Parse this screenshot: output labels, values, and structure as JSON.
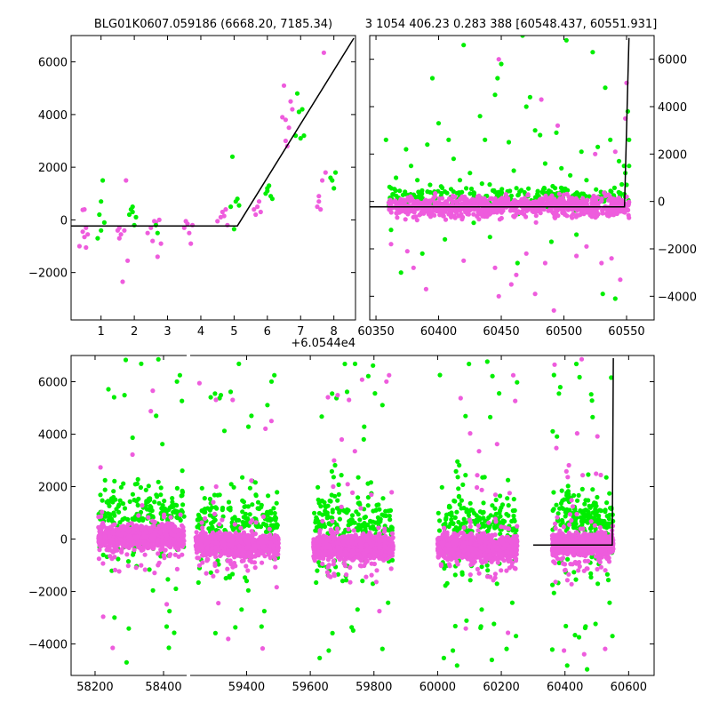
{
  "titles": {
    "left": "BLG01K0607.059186 (6668.20, 7185.34)",
    "right": "3 1054 406.23 0.283 388 [60548.437, 60551.931]"
  },
  "colors": {
    "green": "#00ee00",
    "magenta": "#ee5cdd",
    "model": "#000000"
  },
  "chart_data": [
    {
      "type": "scatter",
      "panel": "zoom",
      "x_offset_label": "+6.0544e4",
      "xlim": [
        0.1,
        8.65
      ],
      "ylim": [
        -3800,
        7000
      ],
      "xticks": [
        1,
        2,
        3,
        4,
        5,
        6,
        7,
        8
      ],
      "xtick_labels": [
        "1",
        "2",
        "3",
        "4",
        "5",
        "6",
        "7",
        "8"
      ],
      "yticks": [
        -2000,
        0,
        2000,
        4000,
        6000
      ],
      "ytick_labels": [
        "−2000",
        "0",
        "2000",
        "4000",
        "6000"
      ],
      "model_line": [
        [
          0.1,
          -230
        ],
        [
          5.1,
          -230
        ],
        [
          8.6,
          6900
        ]
      ],
      "series": [
        {
          "color_key": "magenta",
          "points": [
            [
              0.35,
              -1000
            ],
            [
              0.45,
              -450
            ],
            [
              0.5,
              -650
            ],
            [
              0.55,
              -300
            ],
            [
              0.6,
              -550
            ],
            [
              0.5,
              400
            ],
            [
              0.45,
              380
            ],
            [
              0.55,
              -1050
            ],
            [
              1.5,
              -400
            ],
            [
              1.55,
              -700
            ],
            [
              1.6,
              -550
            ],
            [
              1.65,
              -2350
            ],
            [
              1.7,
              -400
            ],
            [
              1.75,
              1500
            ],
            [
              1.8,
              -1550
            ],
            [
              1.55,
              -300
            ],
            [
              2.4,
              -500
            ],
            [
              2.5,
              -300
            ],
            [
              2.55,
              -800
            ],
            [
              2.6,
              -50
            ],
            [
              2.65,
              -100
            ],
            [
              2.7,
              -1400
            ],
            [
              2.75,
              0
            ],
            [
              2.8,
              -900
            ],
            [
              3.5,
              -300
            ],
            [
              3.6,
              -150
            ],
            [
              3.65,
              -500
            ],
            [
              3.7,
              -900
            ],
            [
              3.55,
              -50
            ],
            [
              3.75,
              -200
            ],
            [
              4.5,
              -50
            ],
            [
              4.6,
              100
            ],
            [
              4.65,
              300
            ],
            [
              4.7,
              150
            ],
            [
              4.75,
              400
            ],
            [
              4.8,
              -200
            ],
            [
              5.6,
              400
            ],
            [
              5.7,
              500
            ],
            [
              5.75,
              700
            ],
            [
              5.8,
              300
            ],
            [
              5.65,
              200
            ],
            [
              6.45,
              3900
            ],
            [
              6.5,
              5100
            ],
            [
              6.55,
              3000
            ],
            [
              6.6,
              2800
            ],
            [
              6.65,
              3500
            ],
            [
              6.7,
              4500
            ],
            [
              6.75,
              4200
            ],
            [
              6.55,
              3800
            ],
            [
              7.5,
              500
            ],
            [
              7.55,
              700
            ],
            [
              7.6,
              400
            ],
            [
              7.65,
              1500
            ],
            [
              7.7,
              6350
            ],
            [
              7.75,
              1800
            ],
            [
              7.55,
              900
            ]
          ]
        },
        {
          "color_key": "green",
          "points": [
            [
              0.9,
              -700
            ],
            [
              0.95,
              200
            ],
            [
              1.0,
              700
            ],
            [
              1.05,
              1500
            ],
            [
              1.1,
              -100
            ],
            [
              1.0,
              -400
            ],
            [
              1.85,
              200
            ],
            [
              1.9,
              400
            ],
            [
              1.95,
              500
            ],
            [
              2.0,
              -200
            ],
            [
              2.05,
              100
            ],
            [
              1.95,
              300
            ],
            [
              2.65,
              -200
            ],
            [
              2.7,
              -500
            ],
            [
              4.9,
              500
            ],
            [
              4.95,
              2400
            ],
            [
              5.0,
              -350
            ],
            [
              5.05,
              700
            ],
            [
              5.1,
              800
            ],
            [
              5.15,
              550
            ],
            [
              5.95,
              1000
            ],
            [
              6.0,
              1200
            ],
            [
              6.05,
              1300
            ],
            [
              6.1,
              900
            ],
            [
              6.15,
              800
            ],
            [
              6.0,
              1100
            ],
            [
              6.85,
              3200
            ],
            [
              6.9,
              4800
            ],
            [
              6.95,
              4100
            ],
            [
              7.0,
              3100
            ],
            [
              7.05,
              4200
            ],
            [
              7.1,
              3200
            ],
            [
              7.95,
              1500
            ],
            [
              8.0,
              1200
            ],
            [
              8.05,
              1800
            ],
            [
              7.9,
              1600
            ]
          ]
        }
      ]
    },
    {
      "type": "scatter",
      "panel": "season",
      "xlim": [
        60345,
        60572
      ],
      "ylim": [
        -5000,
        7000
      ],
      "xticks": [
        60350,
        60400,
        60450,
        60500,
        60550
      ],
      "xtick_labels": [
        "60350",
        "60400",
        "60450",
        "60500",
        "60550"
      ],
      "yticks": [
        -4000,
        -2000,
        0,
        2000,
        4000,
        6000
      ],
      "ytick_labels": [
        "−4000",
        "−2000",
        "0",
        "2000",
        "4000",
        "6000"
      ],
      "model_line": [
        [
          60345,
          -230
        ],
        [
          60548.4,
          -230
        ],
        [
          60551.9,
          6900
        ]
      ],
      "series": [
        {
          "color_key": "magenta",
          "dense_band": {
            "x_range": [
              60360,
              60552
            ],
            "y_center": -200,
            "spread": 650
          },
          "points": [
            [
              60362,
              -1800
            ],
            [
              60375,
              -2100
            ],
            [
              60390,
              -3700
            ],
            [
              60420,
              -2500
            ],
            [
              60445,
              -2800
            ],
            [
              60448,
              -4000
            ],
            [
              60458,
              -3500
            ],
            [
              60462,
              -3100
            ],
            [
              60470,
              -2200
            ],
            [
              60477,
              -3900
            ],
            [
              60485,
              -2600
            ],
            [
              60492,
              -4600
            ],
            [
              60510,
              -2300
            ],
            [
              60518,
              -1900
            ],
            [
              60538,
              -2400
            ],
            [
              60545,
              -3300
            ],
            [
              60530,
              -2600
            ],
            [
              60380,
              -2800
            ],
            [
              60448,
              6000
            ],
            [
              60482,
              4300
            ],
            [
              60495,
              3200
            ],
            [
              60525,
              2000
            ],
            [
              60541,
              2100
            ],
            [
              60550,
              5000
            ],
            [
              60549,
              3500
            ]
          ]
        },
        {
          "color_key": "green",
          "points": [
            [
              60358,
              2600
            ],
            [
              60362,
              -1200
            ],
            [
              60366,
              1000
            ],
            [
              60370,
              -3000
            ],
            [
              60374,
              2200
            ],
            [
              60378,
              1500
            ],
            [
              60383,
              900
            ],
            [
              60387,
              -2200
            ],
            [
              60391,
              2400
            ],
            [
              60395,
              5200
            ],
            [
              60400,
              3300
            ],
            [
              60405,
              -1600
            ],
            [
              60408,
              2600
            ],
            [
              60412,
              1800
            ],
            [
              60417,
              900
            ],
            [
              60420,
              6600
            ],
            [
              60425,
              1200
            ],
            [
              60428,
              -900
            ],
            [
              60433,
              3600
            ],
            [
              60437,
              2600
            ],
            [
              60441,
              -1500
            ],
            [
              60445,
              4500
            ],
            [
              60447,
              5200
            ],
            [
              60450,
              5800
            ],
            [
              60456,
              2500
            ],
            [
              60460,
              1300
            ],
            [
              60463,
              -2600
            ],
            [
              60467,
              7000
            ],
            [
              60470,
              4000
            ],
            [
              60473,
              4400
            ],
            [
              60477,
              3000
            ],
            [
              60481,
              2800
            ],
            [
              60485,
              1600
            ],
            [
              60490,
              -1700
            ],
            [
              60494,
              2900
            ],
            [
              60498,
              1400
            ],
            [
              60502,
              6800
            ],
            [
              60505,
              1100
            ],
            [
              60510,
              -1400
            ],
            [
              60514,
              2100
            ],
            [
              60518,
              900
            ],
            [
              60523,
              6300
            ],
            [
              60527,
              2300
            ],
            [
              60531,
              -3900
            ],
            [
              60533,
              4800
            ],
            [
              60537,
              2600
            ],
            [
              60541,
              -4100
            ],
            [
              60544,
              1700
            ],
            [
              60548,
              1500
            ],
            [
              60549,
              1200
            ],
            [
              60551,
              3800
            ],
            [
              60552,
              2600
            ],
            [
              60550,
              700
            ],
            [
              60552,
              1500
            ]
          ]
        }
      ]
    },
    {
      "type": "scatter",
      "panel": "full",
      "xlim": [
        58130,
        60680
      ],
      "ylim": [
        -5200,
        7000
      ],
      "xticks": [
        58200,
        58400,
        59400,
        59600,
        59800,
        60000,
        60200,
        60400,
        60600
      ],
      "xtick_labels": [
        "58200",
        "58400",
        "59400",
        "59600",
        "59800",
        "60000",
        "60200",
        "60400",
        "60600"
      ],
      "yticks": [
        -4000,
        -2000,
        0,
        2000,
        4000,
        6000
      ],
      "ytick_labels": [
        "−4000",
        "−2000",
        "0",
        "2000",
        "4000",
        "6000"
      ],
      "model_line": [
        [
          60300,
          -230
        ],
        [
          60548.4,
          -230
        ],
        [
          60551.9,
          6900
        ]
      ],
      "seasons": [
        {
          "range": [
            58210,
            58460
          ],
          "band_center": 100,
          "band_spread": 650
        },
        {
          "range": [
            59240,
            59500
          ],
          "band_center": -200,
          "band_spread": 650
        },
        {
          "range": [
            59610,
            59860
          ],
          "band_center": -300,
          "band_spread": 750
        },
        {
          "range": [
            60000,
            60250
          ],
          "band_center": -300,
          "band_spread": 750
        },
        {
          "range": [
            60360,
            60552
          ],
          "band_center": -200,
          "band_spread": 650
        }
      ],
      "series": [
        {
          "color_key": "green",
          "scatter_count_per_season": 80,
          "y_range": [
            -5000,
            7000
          ]
        },
        {
          "color_key": "magenta",
          "scatter_count_per_season": 60,
          "y_range": [
            -5000,
            7000
          ]
        }
      ]
    }
  ]
}
